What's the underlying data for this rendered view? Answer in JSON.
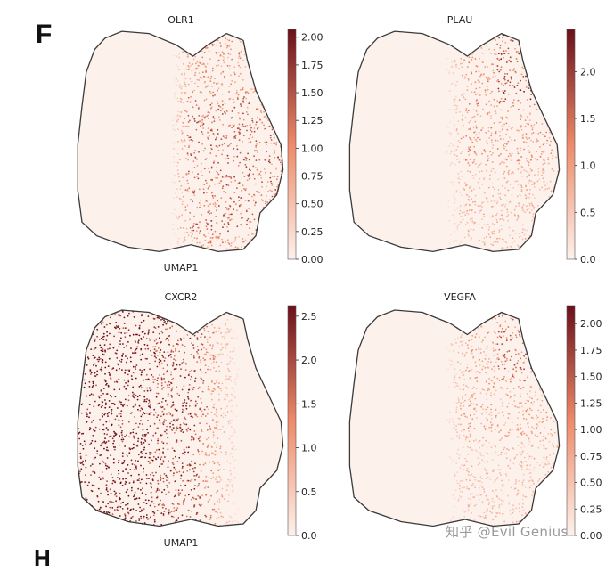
{
  "figure": {
    "panel_label": "F",
    "next_panel_label": "H",
    "watermark": "知乎 @Evil Genius"
  },
  "colors": {
    "cmap_low": "#fdf1ec",
    "cmap_mid": "#ef8a68",
    "cmap_high": "#6b0f1a",
    "outline": "#3a3a3a",
    "text": "#222222"
  },
  "chart_data": [
    {
      "type": "scatter",
      "title": "OLR1",
      "xlabel": "UMAP1",
      "ylabel": "",
      "colorbar": {
        "min": 0.0,
        "max": 2.07,
        "ticks": [
          "0.00",
          "0.25",
          "0.50",
          "0.75",
          "1.00",
          "1.25",
          "1.50",
          "1.75",
          "2.00"
        ],
        "tick_values": [
          0,
          0.25,
          0.5,
          0.75,
          1.0,
          1.25,
          1.5,
          1.75,
          2.0
        ]
      },
      "expression_region": "right lobe",
      "hotspot": "right-center",
      "intensity": 0.8
    },
    {
      "type": "scatter",
      "title": "PLAU",
      "xlabel": "",
      "ylabel": "",
      "colorbar": {
        "min": 0.0,
        "max": 2.45,
        "ticks": [
          "0.0",
          "0.5",
          "1.0",
          "1.5",
          "2.0"
        ],
        "tick_values": [
          0,
          0.5,
          1.0,
          1.5,
          2.0
        ]
      },
      "expression_region": "right lobe",
      "hotspot": "upper-right",
      "intensity": 0.7
    },
    {
      "type": "scatter",
      "title": "CXCR2",
      "xlabel": "UMAP1",
      "ylabel": "",
      "colorbar": {
        "min": 0.0,
        "max": 2.62,
        "ticks": [
          "0.0",
          "0.5",
          "1.0",
          "1.5",
          "2.0",
          "2.5"
        ],
        "tick_values": [
          0,
          0.5,
          1.0,
          1.5,
          2.0,
          2.5
        ]
      },
      "expression_region": "left lobe",
      "hotspot": "left",
      "intensity": 0.95
    },
    {
      "type": "scatter",
      "title": "VEGFA",
      "xlabel": "",
      "ylabel": "",
      "colorbar": {
        "min": 0.0,
        "max": 2.17,
        "ticks": [
          "0.00",
          "0.25",
          "0.50",
          "0.75",
          "1.00",
          "1.25",
          "1.50",
          "1.75",
          "2.00"
        ],
        "tick_values": [
          0,
          0.25,
          0.5,
          0.75,
          1.0,
          1.25,
          1.5,
          1.75,
          2.0
        ]
      },
      "expression_region": "right lobe",
      "hotspot": "upper-right",
      "intensity": 0.6
    }
  ]
}
